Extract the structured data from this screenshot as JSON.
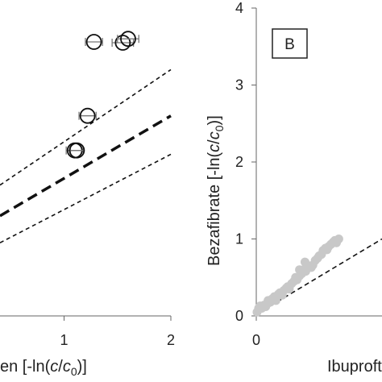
{
  "chart_data": [
    {
      "panel": "A (cropped)",
      "type": "scatter",
      "xlabel_visible": "en  [-ln(c/c0)]",
      "x_ticks": [
        "1",
        "2"
      ],
      "y_ticks": [],
      "xlim": [
        0.4,
        2.0
      ],
      "ylim": [
        0,
        4
      ],
      "points": [
        {
          "x": 1.28,
          "y": 3.56,
          "xerr": 0.08
        },
        {
          "x": 1.55,
          "y": 3.55,
          "xerr": 0.1
        },
        {
          "x": 1.6,
          "y": 3.6,
          "xerr": 0.1
        },
        {
          "x": 1.22,
          "y": 2.6,
          "xerr": 0.08
        },
        {
          "x": 1.1,
          "y": 2.15,
          "xerr": 0.08
        },
        {
          "x": 1.12,
          "y": 2.15,
          "xerr": 0.06
        }
      ],
      "lines": [
        {
          "style": "bold-dashed",
          "points": [
            [
              0.4,
              1.3
            ],
            [
              2.0,
              2.6
            ]
          ]
        },
        {
          "style": "dashed",
          "points": [
            [
              0.4,
              1.7
            ],
            [
              2.0,
              3.2
            ]
          ]
        },
        {
          "style": "dashed",
          "points": [
            [
              0.4,
              0.95
            ],
            [
              2.0,
              2.1
            ]
          ]
        }
      ]
    },
    {
      "panel": "B (cropped)",
      "type": "scatter",
      "panel_label": "B",
      "ylabel_main": "Bezafibrate  [-ln(",
      "ylabel_c": "c",
      "ylabel_c0": "c",
      "ylabel_sub": "0",
      "ylabel_end": ")]",
      "xlabel_visible": "Ibuproft",
      "x_ticks": [
        "0"
      ],
      "y_ticks": [
        "0",
        "1",
        "2",
        "3",
        "4"
      ],
      "xlim": [
        0,
        1.6
      ],
      "ylim": [
        0,
        4
      ],
      "points": [
        [
          0.01,
          0.05
        ],
        [
          0.03,
          0.1
        ],
        [
          0.05,
          0.13
        ],
        [
          0.07,
          0.1
        ],
        [
          0.1,
          0.14
        ],
        [
          0.12,
          0.12
        ],
        [
          0.15,
          0.2
        ],
        [
          0.18,
          0.18
        ],
        [
          0.2,
          0.22
        ],
        [
          0.23,
          0.25
        ],
        [
          0.25,
          0.2
        ],
        [
          0.28,
          0.28
        ],
        [
          0.3,
          0.3
        ],
        [
          0.33,
          0.27
        ],
        [
          0.35,
          0.33
        ],
        [
          0.38,
          0.36
        ],
        [
          0.4,
          0.38
        ],
        [
          0.42,
          0.35
        ],
        [
          0.45,
          0.42
        ],
        [
          0.48,
          0.45
        ],
        [
          0.5,
          0.5
        ],
        [
          0.52,
          0.47
        ],
        [
          0.55,
          0.52
        ],
        [
          0.58,
          0.55
        ],
        [
          0.6,
          0.6
        ],
        [
          0.63,
          0.58
        ],
        [
          0.65,
          0.62
        ],
        [
          0.68,
          0.65
        ],
        [
          0.7,
          0.63
        ],
        [
          0.72,
          0.66
        ],
        [
          0.75,
          0.72
        ],
        [
          0.78,
          0.75
        ],
        [
          0.8,
          0.78
        ],
        [
          0.83,
          0.8
        ],
        [
          0.85,
          0.85
        ],
        [
          0.88,
          0.88
        ],
        [
          0.9,
          0.86
        ],
        [
          0.92,
          0.9
        ],
        [
          0.95,
          0.93
        ],
        [
          0.98,
          0.96
        ],
        [
          1.0,
          0.98
        ],
        [
          1.02,
          0.95
        ],
        [
          1.05,
          1.0
        ],
        [
          0.55,
          0.6
        ],
        [
          0.62,
          0.7
        ]
      ],
      "lines": [
        {
          "style": "dashed",
          "points": [
            [
              0,
              0.02
            ],
            [
              1.6,
              1.0
            ]
          ]
        }
      ]
    }
  ]
}
